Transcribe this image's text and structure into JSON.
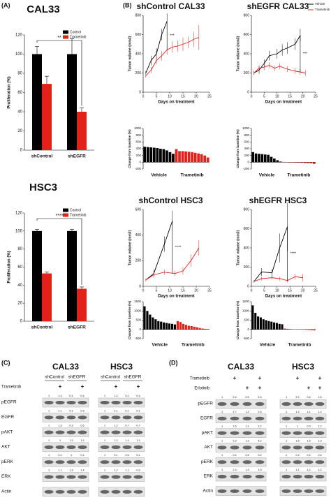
{
  "panel_labels": [
    "(A)",
    "(B)",
    "(C)",
    "(D)"
  ],
  "chart_data": [
    {
      "type": "bar",
      "title": "CAL33",
      "ylabel": "Proliferation (%)",
      "categories": [
        "shControl",
        "shEGFR"
      ],
      "series": [
        {
          "name": "Control",
          "color": "#000000",
          "values": [
            100,
            100
          ],
          "errors": [
            8,
            16
          ]
        },
        {
          "name": "Trametinib",
          "color": "#e32119",
          "values": [
            69,
            40
          ],
          "errors": [
            8,
            4
          ]
        }
      ],
      "ylim": [
        0,
        120
      ],
      "yticks": [
        0,
        20,
        40,
        60,
        80,
        100,
        120
      ],
      "legend": true,
      "annotation": "**"
    },
    {
      "type": "bar",
      "title": "HSC3",
      "ylabel": "Proliferation (%)",
      "categories": [
        "shControl",
        "shEGFR"
      ],
      "series": [
        {
          "name": "Control",
          "color": "#000000",
          "values": [
            100,
            100
          ],
          "errors": [
            2,
            2
          ]
        },
        {
          "name": "Trametinib",
          "color": "#e32119",
          "values": [
            53,
            36
          ],
          "errors": [
            1.5,
            2
          ]
        }
      ],
      "ylim": [
        0,
        120
      ],
      "yticks": [
        0,
        20,
        40,
        60,
        80,
        100,
        120
      ],
      "legend": true,
      "annotation": "****"
    },
    {
      "type": "line",
      "title": "shControl CAL33",
      "xlabel": "Days on treatment",
      "ylabel": "Tumor volume (mm3)",
      "xlim": [
        0,
        25
      ],
      "xticks": [
        0,
        5,
        10,
        15,
        20,
        25
      ],
      "ylim": [
        0,
        800
      ],
      "yticks": [
        0,
        200,
        400,
        600,
        800
      ],
      "series": [
        {
          "color": "#000000",
          "x": [
            1,
            3,
            5,
            7,
            9
          ],
          "values": [
            200,
            330,
            400,
            600,
            740
          ],
          "errors": [
            20,
            50,
            60,
            60,
            80
          ]
        },
        {
          "color": "#e32119",
          "x": [
            1,
            3,
            5,
            7,
            9,
            11,
            13,
            15,
            17,
            19,
            21
          ],
          "values": [
            170,
            230,
            330,
            380,
            440,
            470,
            480,
            500,
            520,
            550,
            570
          ],
          "errors": [
            20,
            30,
            40,
            50,
            50,
            60,
            60,
            70,
            60,
            80,
            130
          ]
        }
      ],
      "annotation": "***"
    },
    {
      "type": "line",
      "title": "shEGFR CAL33",
      "xlabel": "Days on treatment",
      "ylabel": "Tumor volume (mm3)",
      "xlim": [
        0,
        25
      ],
      "xticks": [
        0,
        5,
        10,
        15,
        20,
        25
      ],
      "ylim": [
        0,
        800
      ],
      "yticks": [
        0,
        200,
        400,
        600,
        800
      ],
      "series": [
        {
          "name": "Vehicle",
          "color": "#000000",
          "x": [
            1,
            3,
            5,
            7,
            10,
            12,
            14,
            17,
            19
          ],
          "values": [
            200,
            230,
            300,
            380,
            400,
            440,
            460,
            500,
            590
          ],
          "errors": [
            20,
            40,
            40,
            50,
            50,
            60,
            60,
            60,
            70
          ]
        },
        {
          "name": "Trametinib",
          "color": "#e32119",
          "x": [
            1,
            3,
            5,
            7,
            9,
            11,
            14,
            17,
            19,
            21
          ],
          "values": [
            200,
            250,
            260,
            280,
            250,
            270,
            240,
            220,
            210,
            200
          ],
          "errors": [
            20,
            30,
            30,
            30,
            30,
            30,
            30,
            30,
            30,
            30
          ]
        }
      ],
      "legend": true,
      "annotation": "***"
    },
    {
      "type": "waterfall",
      "ylabel": "Change from baseline (%)",
      "ylim": [
        -200,
        1000
      ],
      "yticks": [
        -200,
        0,
        200,
        400,
        600,
        800,
        1000
      ],
      "series": [
        {
          "name": "Vehicle",
          "color": "#000000",
          "values": [
            460,
            450,
            440,
            430,
            420,
            400,
            390,
            350,
            300,
            250
          ]
        },
        {
          "name": "Trametinib",
          "color": "#e32119",
          "values": [
            390,
            330,
            330,
            320,
            310,
            300,
            280,
            260,
            240,
            200,
            140
          ]
        }
      ]
    },
    {
      "type": "waterfall",
      "ylabel": "Change from baseline (%)",
      "ylim": [
        -200,
        1000
      ],
      "yticks": [
        -200,
        0,
        200,
        400,
        600,
        800,
        1000
      ],
      "series": [
        {
          "name": "Vehicle",
          "color": "#000000",
          "values": [
            300,
            260,
            250,
            240,
            230,
            220,
            160,
            110,
            60,
            20
          ]
        },
        {
          "name": "Trametinib",
          "color": "#e32119",
          "values": [
            10,
            5,
            0,
            -5,
            -10,
            -10,
            -15,
            -20,
            -25,
            -30,
            -50
          ]
        }
      ]
    },
    {
      "type": "line",
      "title": "shControl HSC3",
      "xlabel": "Days on treatment",
      "ylabel": "Tumor volume (mm3)",
      "xlim": [
        0,
        25
      ],
      "xticks": [
        0,
        5,
        10,
        15,
        20,
        25
      ],
      "ylim": [
        0,
        600
      ],
      "yticks": [
        0,
        200,
        400,
        600
      ],
      "series": [
        {
          "color": "#000000",
          "x": [
            1,
            4,
            8,
            11
          ],
          "values": [
            50,
            100,
            330,
            510
          ],
          "errors": [
            10,
            30,
            60,
            80
          ]
        },
        {
          "color": "#e32119",
          "x": [
            1,
            4,
            8,
            12,
            15,
            18,
            21
          ],
          "values": [
            50,
            90,
            110,
            100,
            120,
            200,
            300
          ],
          "errors": [
            10,
            20,
            20,
            20,
            30,
            50,
            60
          ]
        }
      ],
      "annotation": "****"
    },
    {
      "type": "line",
      "title": "shEGFR HSC3",
      "xlabel": "Days on treatment",
      "ylabel": "Tumor volume (mm3)",
      "xlim": [
        0,
        25
      ],
      "xticks": [
        0,
        5,
        10,
        15,
        20,
        25
      ],
      "ylim": [
        0,
        800
      ],
      "yticks": [
        0,
        200,
        400,
        600,
        800
      ],
      "series": [
        {
          "color": "#000000",
          "x": [
            1,
            4,
            8,
            11,
            14
          ],
          "values": [
            50,
            150,
            140,
            400,
            620
          ],
          "errors": [
            10,
            40,
            40,
            150,
            250
          ]
        },
        {
          "color": "#e32119",
          "x": [
            1,
            4,
            8,
            11,
            14,
            17,
            20
          ],
          "values": [
            50,
            80,
            90,
            80,
            60,
            100,
            90
          ],
          "errors": [
            10,
            20,
            20,
            20,
            20,
            30,
            40
          ]
        }
      ],
      "annotation": "****"
    },
    {
      "type": "waterfall",
      "ylabel": "Change from baseline (%)",
      "ylim": [
        -500,
        1500
      ],
      "yticks": [
        -500,
        0,
        500,
        1000,
        1500
      ],
      "series": [
        {
          "name": "Vehicle",
          "color": "#000000",
          "values": [
            1250,
            1000,
            800,
            650,
            550,
            450,
            420,
            380,
            350,
            320,
            300,
            270
          ]
        },
        {
          "name": "Trametinib",
          "color": "#e32119",
          "values": [
            450,
            400,
            300,
            250,
            200,
            180,
            150,
            120,
            80,
            50,
            30,
            20
          ]
        }
      ]
    },
    {
      "type": "waterfall",
      "ylabel": "Change from baseline (%)",
      "ylim": [
        -500,
        1500
      ],
      "yticks": [
        -500,
        0,
        500,
        1000,
        1500
      ],
      "series": [
        {
          "name": "Vehicle",
          "color": "#000000",
          "values": [
            1300,
            900,
            700,
            650,
            550,
            500,
            450,
            420,
            380,
            350,
            300,
            280
          ]
        },
        {
          "name": "Trametinib",
          "color": "#e32119",
          "values": [
            50,
            30,
            20,
            10,
            5,
            0,
            -5,
            -10,
            -20,
            -30,
            -40,
            -50
          ]
        }
      ]
    }
  ],
  "blots": [
    {
      "titles": [
        "CAL33",
        "HSC3"
      ],
      "groups": [
        "shControl",
        "shEGFR",
        "shControl",
        "shEGFR"
      ],
      "treatments": [
        {
          "name": "Trametinib",
          "cells": [
            null,
            "+",
            null,
            "+",
            null,
            "+",
            null,
            "+"
          ]
        }
      ],
      "rows": [
        {
          "name": "pEGFR",
          "values": [
            1,
            1.4,
            0.1,
            0.4,
            1,
            1.2,
            0.2,
            0.4
          ]
        },
        {
          "name": "EGFR",
          "values": [
            1,
            1.1,
            0.1,
            0.3,
            1,
            1.1,
            0.1,
            0.1
          ]
        },
        {
          "name": "pAKT",
          "values": [
            1,
            1.3,
            0.3,
            0.6,
            1,
            1.2,
            0.7,
            0.7
          ]
        },
        {
          "name": "AKT",
          "values": [
            1,
            1,
            1.2,
            1.2,
            1,
            1.2,
            1.4,
            1.2
          ]
        },
        {
          "name": "pERK",
          "values": [
            1,
            0.4,
            1,
            0.4,
            1,
            0.1,
            0.5,
            0.1
          ]
        },
        {
          "name": "ERK",
          "values": [
            1,
            1.1,
            1.3,
            1.4,
            1,
            1.2,
            1.1,
            0.9
          ]
        },
        {
          "name": "Actin"
        }
      ]
    },
    {
      "titles": [
        "CAL33",
        "HSC3"
      ],
      "treatments": [
        {
          "name": "Trametinib",
          "cells": [
            null,
            "+",
            null,
            "+",
            null,
            "+",
            null,
            "+"
          ]
        },
        {
          "name": "Erlotinib",
          "cells": [
            null,
            null,
            "+",
            "+",
            null,
            null,
            "+",
            "+"
          ]
        }
      ],
      "rows": [
        {
          "name": "pEGFR",
          "values": [
            1,
            2.4,
            0.5,
            2.4,
            1,
            2.2,
            0.6,
            1.5
          ]
        },
        {
          "name": "EGFR",
          "values": [
            1,
            1.7,
            1.2,
            2.5,
            1,
            1.2,
            1.1,
            1.2
          ]
        },
        {
          "name": "pAKT",
          "values": [
            1,
            1.6,
            1.1,
            1.2,
            1,
            1,
            0.9,
            1.2
          ]
        },
        {
          "name": "AKT",
          "values": [
            1,
            1.9,
            1.3,
            4.2,
            1,
            1.5,
            1.5,
            1.3
          ]
        },
        {
          "name": "pERK",
          "values": [
            1,
            0.4,
            0.5,
            0.2,
            1,
            0.2,
            0.2,
            0.4
          ]
        },
        {
          "name": "ERK",
          "values": [
            1,
            1.3,
            1.3,
            1.9,
            1,
            1.1,
            1.2,
            1.2
          ]
        },
        {
          "name": "Actin"
        }
      ]
    }
  ]
}
